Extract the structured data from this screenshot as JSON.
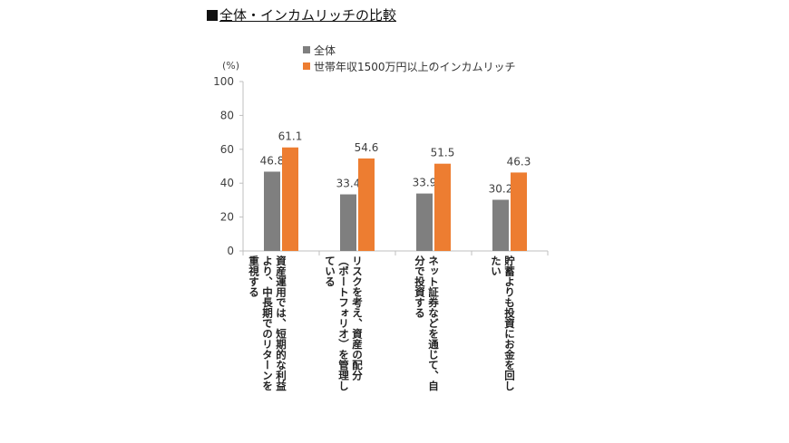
{
  "title": "全体・インカムリッチの比較",
  "colors": {
    "all": "#7f7f7f",
    "rich": "#ed7d31",
    "axis": "#bfbfbf",
    "text": "#404040"
  },
  "chart_data": {
    "type": "bar",
    "title": "全体・インカムリッチの比較",
    "unit_label": "(%)",
    "ylim": [
      0,
      100
    ],
    "yticks": [
      0,
      20,
      40,
      60,
      80,
      100
    ],
    "grid": false,
    "legend_position": "top-right",
    "categories": [
      "資産運用では、短期的な利益より、中長期でのリターンを重視する",
      "リスクを考え、資産の配分（ポートフォリオ）を管理している",
      "ネット証券などを通じて、自分で投資する",
      "貯蓄よりも投資にお金を回したい"
    ],
    "category_lines": [
      [
        "資産運用では、短期的な利益",
        "より、中長期でのリターンを",
        "重視する"
      ],
      [
        "リスクを考え、資産の配分",
        "（ポートフォリオ）を管理し",
        "ている"
      ],
      [
        "ネット証券などを通じて、自",
        "分で投資する"
      ],
      [
        "貯蓄よりも投資にお金を回し",
        "たい"
      ]
    ],
    "series": [
      {
        "name": "全体",
        "color": "#7f7f7f",
        "values": [
          46.8,
          33.4,
          33.9,
          30.2
        ]
      },
      {
        "name": "世帯年収1500万円以上のインカムリッチ",
        "color": "#ed7d31",
        "values": [
          61.1,
          54.6,
          51.5,
          46.3
        ]
      }
    ]
  }
}
